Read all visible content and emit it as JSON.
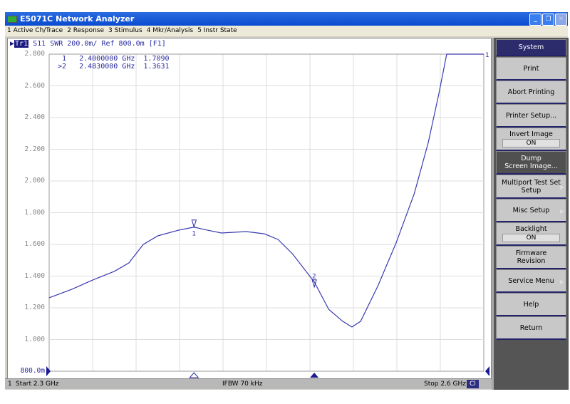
{
  "window": {
    "title": "E5071C Network Analyzer"
  },
  "menu": [
    "1 Active Ch/Trace",
    "2 Response",
    "3 Stimulus",
    "4 Mkr/Analysis",
    "5 Instr State"
  ],
  "trace_header": {
    "trace": "Tr1",
    "text": "S11  SWR 200.0m/ Ref 800.0m [F1]"
  },
  "markers": {
    "line1": " 1   2.4000000 GHz  1.7090",
    "line2": ">2   2.4830000 GHz  1.3631",
    "m1_label": "1",
    "m2_label": "2",
    "end_label": "1"
  },
  "status": {
    "channel": "1",
    "start": "Start 2.3 GHz",
    "ifbw": "IFBW 70 kHz",
    "stop": "Stop 2.6 GHz",
    "cal": "Cl"
  },
  "softkeys": {
    "system": "System",
    "print": "Print",
    "abort": "Abort Printing",
    "printer_setup": "Printer Setup...",
    "invert_image": "Invert Image",
    "invert_value": "ON",
    "dump1": "Dump",
    "dump2": "Screen Image...",
    "multiport1": "Multiport Test Set",
    "multiport2": "Setup",
    "misc": "Misc Setup",
    "backlight": "Backlight",
    "backlight_value": "ON",
    "firmware1": "Firmware",
    "firmware2": "Revision",
    "service": "Service Menu",
    "help": "Help",
    "return": "Return"
  },
  "chart_data": {
    "type": "line",
    "xlim": [
      2.3,
      2.6
    ],
    "ylim": [
      0.8,
      2.8
    ],
    "ytick_labels": [
      "2.800",
      "2.600",
      "2.400",
      "2.200",
      "2.000",
      "1.800",
      "1.600",
      "1.400",
      "1.200",
      "1.000",
      "800.0m"
    ],
    "grid": true,
    "color": "#3a3ab0",
    "series": [
      {
        "x": [
          2.3,
          2.3157,
          2.33,
          2.345,
          2.355,
          2.365,
          2.375,
          2.3895,
          2.4,
          2.409,
          2.419,
          2.436,
          2.4485,
          2.458,
          2.468,
          2.483,
          2.493,
          2.5026,
          2.509,
          2.515,
          2.527,
          2.5395,
          2.552,
          2.5616,
          2.569,
          2.5744,
          2.6
        ],
        "y": [
          1.263,
          1.317,
          1.375,
          1.43,
          1.483,
          1.6,
          1.654,
          1.69,
          1.709,
          1.69,
          1.672,
          1.681,
          1.667,
          1.631,
          1.54,
          1.363,
          1.19,
          1.115,
          1.079,
          1.115,
          1.34,
          1.61,
          1.92,
          2.24,
          2.55,
          2.8,
          2.8
        ]
      }
    ]
  }
}
